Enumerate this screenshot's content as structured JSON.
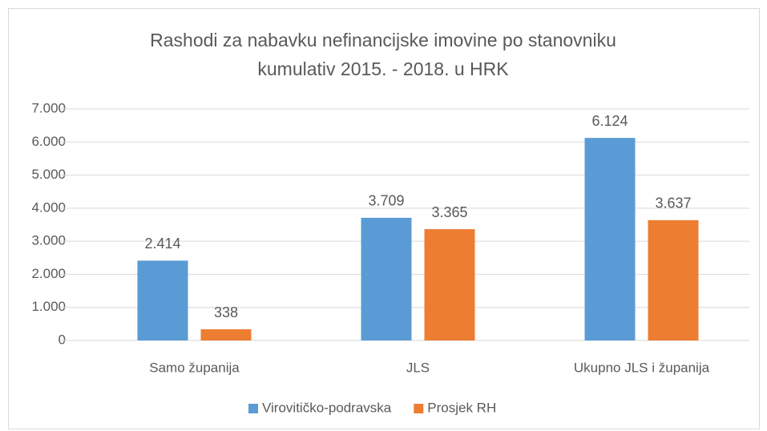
{
  "chart_data": {
    "type": "bar",
    "title": [
      "Rashodi za nabavku nefinancijske imovine po stanovniku",
      "kumulativ 2015. - 2018. u HRK"
    ],
    "categories": [
      "Samo županija",
      "JLS",
      "Ukupno JLS i županija"
    ],
    "series": [
      {
        "name": "Virovitičko-podravska",
        "color": "#5b9bd5",
        "values": [
          2414,
          3709,
          6124
        ],
        "value_labels": [
          "2.414",
          "3.709",
          "6.124"
        ]
      },
      {
        "name": "Prosjek RH",
        "color": "#ed7d31",
        "values": [
          338,
          3365,
          3637
        ],
        "value_labels": [
          "338",
          "3.365",
          "3.637"
        ]
      }
    ],
    "ylim": [
      0,
      7000
    ],
    "yticks": [
      0,
      {
        "value": 1000,
        "label": "1.000"
      },
      {
        "value": 2000,
        "label": "2.000"
      },
      {
        "value": 3000,
        "label": "3.000"
      },
      {
        "value": 4000,
        "label": "4.000"
      },
      {
        "value": 5000,
        "label": "5.000"
      },
      {
        "value": 6000,
        "label": "6.000"
      },
      {
        "value": 7000,
        "label": "7.000"
      }
    ],
    "grid": true,
    "legend": "bottom"
  }
}
